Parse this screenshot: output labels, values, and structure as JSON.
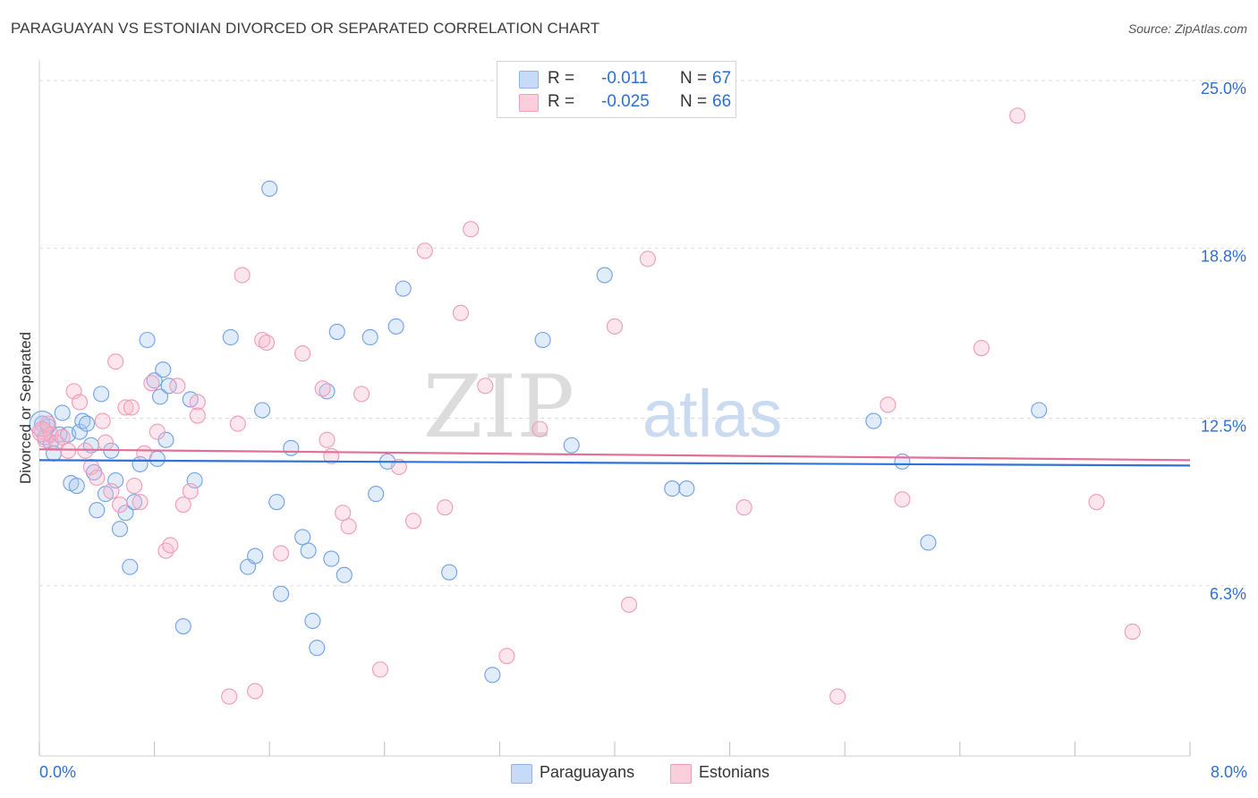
{
  "title": "PARAGUAYAN VS ESTONIAN DIVORCED OR SEPARATED CORRELATION CHART",
  "source": "Source: ZipAtlas.com",
  "watermark": {
    "zip": "ZIP",
    "atlas": "atlas"
  },
  "stats": [
    {
      "r_label": "R =",
      "r_value": "-0.011",
      "n_label": "N =",
      "n_value": "67",
      "color": "#a9c8f2"
    },
    {
      "r_label": "R =",
      "r_value": "-0.025",
      "n_label": "N =",
      "n_value": "66",
      "color": "#f5b8cb"
    }
  ],
  "legend": [
    {
      "label": "Paraguayans",
      "color": "#a9c8f2"
    },
    {
      "label": "Estonians",
      "color": "#f5b8cb"
    }
  ],
  "chart_data": {
    "type": "scatter",
    "title": "PARAGUAYAN VS ESTONIAN DIVORCED OR SEPARATED CORRELATION CHART",
    "xlabel": "",
    "ylabel": "Divorced or Separated",
    "xlim": [
      0,
      8
    ],
    "ylim": [
      0,
      25.6
    ],
    "x_tick_labels": [
      "0.0%",
      "8.0%"
    ],
    "y_ticks": [
      6.3,
      12.5,
      18.8,
      25.0
    ],
    "y_tick_labels": [
      "6.3%",
      "12.5%",
      "18.8%",
      "25.0%"
    ],
    "colors": {
      "axis_text": "#2e6fd2",
      "grid": "#dddddd"
    },
    "series": [
      {
        "name": "Paraguayans",
        "color": "#6fa0e6",
        "trend": {
          "y_start": 10.95,
          "y_end": 10.75,
          "color": "#2f72d8"
        },
        "points": [
          [
            0.02,
            12.3
          ],
          [
            0.04,
            11.8
          ],
          [
            0.06,
            12.2
          ],
          [
            0.08,
            11.6
          ],
          [
            0.1,
            11.2
          ],
          [
            0.14,
            11.9
          ],
          [
            0.16,
            12.7
          ],
          [
            0.2,
            11.9
          ],
          [
            0.22,
            10.1
          ],
          [
            0.26,
            10.0
          ],
          [
            0.28,
            12.0
          ],
          [
            0.3,
            12.4
          ],
          [
            0.33,
            12.3
          ],
          [
            0.36,
            11.5
          ],
          [
            0.38,
            10.5
          ],
          [
            0.4,
            9.1
          ],
          [
            0.43,
            13.4
          ],
          [
            0.46,
            9.7
          ],
          [
            0.5,
            11.3
          ],
          [
            0.53,
            10.2
          ],
          [
            0.56,
            8.4
          ],
          [
            0.6,
            9.0
          ],
          [
            0.63,
            7.0
          ],
          [
            0.66,
            9.4
          ],
          [
            0.7,
            10.8
          ],
          [
            0.75,
            15.4
          ],
          [
            0.8,
            13.9
          ],
          [
            0.82,
            11.0
          ],
          [
            0.84,
            13.3
          ],
          [
            0.86,
            14.3
          ],
          [
            0.88,
            11.7
          ],
          [
            0.9,
            13.7
          ],
          [
            1.0,
            4.8
          ],
          [
            1.05,
            13.2
          ],
          [
            1.08,
            10.2
          ],
          [
            1.33,
            15.5
          ],
          [
            1.45,
            7.0
          ],
          [
            1.5,
            7.4
          ],
          [
            1.55,
            12.8
          ],
          [
            1.6,
            21.0
          ],
          [
            1.65,
            9.4
          ],
          [
            1.68,
            6.0
          ],
          [
            1.75,
            11.4
          ],
          [
            1.83,
            8.1
          ],
          [
            1.87,
            7.6
          ],
          [
            1.9,
            5.0
          ],
          [
            1.93,
            4.0
          ],
          [
            2.0,
            13.5
          ],
          [
            2.03,
            7.3
          ],
          [
            2.07,
            15.7
          ],
          [
            2.12,
            6.7
          ],
          [
            2.3,
            15.5
          ],
          [
            2.34,
            9.7
          ],
          [
            2.42,
            10.9
          ],
          [
            2.48,
            15.9
          ],
          [
            2.53,
            17.3
          ],
          [
            2.85,
            6.8
          ],
          [
            3.15,
            3.0
          ],
          [
            3.5,
            15.4
          ],
          [
            3.7,
            11.5
          ],
          [
            3.93,
            17.8
          ],
          [
            4.4,
            9.9
          ],
          [
            4.5,
            9.9
          ],
          [
            5.8,
            12.4
          ],
          [
            6.0,
            10.9
          ],
          [
            6.18,
            7.9
          ],
          [
            6.95,
            12.8
          ]
        ]
      },
      {
        "name": "Estonians",
        "color": "#f29ab6",
        "trend": {
          "y_start": 11.35,
          "y_end": 10.95,
          "color": "#e26f95"
        },
        "points": [
          [
            0.02,
            12.0
          ],
          [
            0.04,
            11.7
          ],
          [
            0.06,
            12.3
          ],
          [
            0.08,
            11.9
          ],
          [
            0.12,
            11.6
          ],
          [
            0.16,
            11.8
          ],
          [
            0.2,
            11.3
          ],
          [
            0.24,
            13.5
          ],
          [
            0.28,
            13.1
          ],
          [
            0.32,
            11.3
          ],
          [
            0.36,
            10.7
          ],
          [
            0.4,
            10.3
          ],
          [
            0.44,
            12.4
          ],
          [
            0.46,
            11.6
          ],
          [
            0.5,
            9.8
          ],
          [
            0.53,
            14.6
          ],
          [
            0.56,
            9.3
          ],
          [
            0.6,
            12.9
          ],
          [
            0.64,
            12.9
          ],
          [
            0.66,
            10.0
          ],
          [
            0.7,
            9.4
          ],
          [
            0.73,
            11.2
          ],
          [
            0.78,
            13.8
          ],
          [
            0.82,
            12.0
          ],
          [
            0.88,
            7.6
          ],
          [
            0.91,
            7.8
          ],
          [
            0.96,
            13.7
          ],
          [
            1.0,
            9.3
          ],
          [
            1.05,
            9.8
          ],
          [
            1.1,
            13.1
          ],
          [
            1.32,
            2.2
          ],
          [
            1.38,
            12.3
          ],
          [
            1.41,
            17.8
          ],
          [
            1.5,
            2.4
          ],
          [
            1.55,
            15.4
          ],
          [
            1.58,
            15.3
          ],
          [
            1.68,
            7.5
          ],
          [
            1.83,
            14.9
          ],
          [
            1.97,
            13.6
          ],
          [
            2.0,
            11.7
          ],
          [
            2.03,
            11.1
          ],
          [
            2.11,
            9.0
          ],
          [
            2.15,
            8.5
          ],
          [
            2.24,
            13.4
          ],
          [
            2.37,
            3.2
          ],
          [
            2.5,
            10.7
          ],
          [
            2.6,
            8.7
          ],
          [
            2.68,
            18.7
          ],
          [
            2.82,
            9.2
          ],
          [
            2.93,
            16.4
          ],
          [
            3.0,
            19.5
          ],
          [
            3.1,
            13.7
          ],
          [
            3.25,
            3.7
          ],
          [
            3.48,
            12.1
          ],
          [
            4.0,
            15.9
          ],
          [
            4.1,
            5.6
          ],
          [
            4.23,
            18.4
          ],
          [
            4.9,
            9.2
          ],
          [
            5.55,
            2.2
          ],
          [
            5.9,
            13.0
          ],
          [
            6.0,
            9.5
          ],
          [
            6.55,
            15.1
          ],
          [
            6.8,
            23.7
          ],
          [
            7.35,
            9.4
          ],
          [
            7.6,
            4.6
          ],
          [
            1.1,
            12.6
          ]
        ]
      }
    ]
  }
}
